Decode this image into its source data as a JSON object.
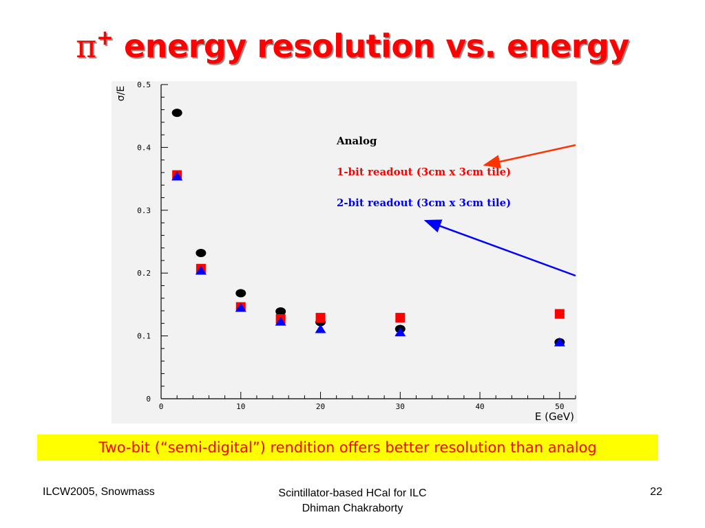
{
  "slide": {
    "title_symbol": "π",
    "title_sup": "+",
    "title_text": " energy resolution vs. energy",
    "caption": "Two-bit (“semi-digital”) rendition offers better resolution than analog",
    "footer_left": "ILCW2005, Snowmass",
    "footer_center_line1": "Scintillator-based HCal for ILC",
    "footer_center_line2": "Dhiman Chakraborty",
    "footer_right": "22"
  },
  "chart_data": {
    "type": "scatter",
    "title": "",
    "xlabel": "E (GeV)",
    "ylabel": "σ/E",
    "xlim": [
      0,
      52
    ],
    "ylim": [
      0,
      0.5
    ],
    "xticks": [
      "0",
      "10",
      "20",
      "30",
      "40",
      "50"
    ],
    "yticks": [
      "0",
      "0.1",
      "0.2",
      "0.3",
      "0.4",
      "0.5"
    ],
    "grid": false,
    "legend": [
      {
        "label": "Analog",
        "color": "#000000"
      },
      {
        "label": "1-bit readout (3cm x 3cm tile)",
        "color": "#ff0000"
      },
      {
        "label": "2-bit readout (3cm x 3cm tile)",
        "color": "#0000ff"
      }
    ],
    "series": [
      {
        "name": "Analog",
        "marker": "circle",
        "color": "#000000",
        "x": [
          2,
          5,
          10,
          15,
          20,
          30,
          50
        ],
        "y": [
          0.455,
          0.232,
          0.168,
          0.139,
          0.122,
          0.111,
          0.09
        ]
      },
      {
        "name": "1-bit readout (3cm x 3cm tile)",
        "marker": "square",
        "color": "#ff0000",
        "x": [
          2,
          5,
          10,
          15,
          20,
          30,
          50
        ],
        "y": [
          0.356,
          0.207,
          0.146,
          0.127,
          0.129,
          0.129,
          0.135
        ]
      },
      {
        "name": "2-bit readout (3cm x 3cm tile)",
        "marker": "triangle",
        "color": "#0000ff",
        "x": [
          2,
          5,
          10,
          15,
          20,
          30,
          50
        ],
        "y": [
          0.354,
          0.204,
          0.145,
          0.123,
          0.111,
          0.106,
          0.09
        ]
      }
    ],
    "colors": {
      "background": "#f2f2f2",
      "arrow_red": "#ff3300",
      "arrow_blue": "#0000ff"
    }
  }
}
